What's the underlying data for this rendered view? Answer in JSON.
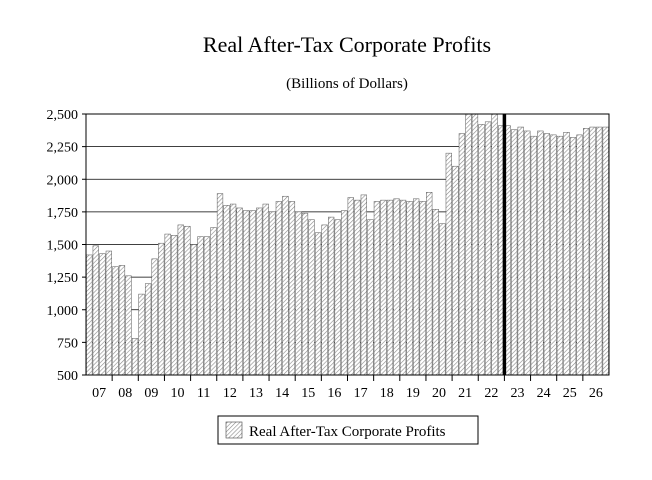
{
  "chart_data": {
    "type": "bar",
    "title": "Real After-Tax Corporate Profits",
    "subtitle": "(Billions of Dollars)",
    "xlabel": "",
    "ylabel": "",
    "ylim": [
      500,
      2500
    ],
    "yticks": [
      500,
      750,
      1000,
      1250,
      1500,
      1750,
      2000,
      2250,
      2500
    ],
    "ytick_labels": [
      "500",
      "750",
      "1,000",
      "1,250",
      "1,500",
      "1,750",
      "2,000",
      "2,250",
      "2,500"
    ],
    "xtick_labels": [
      "07",
      "08",
      "09",
      "10",
      "11",
      "12",
      "13",
      "14",
      "15",
      "16",
      "17",
      "18",
      "19",
      "20",
      "21",
      "22",
      "23",
      "24",
      "25",
      "26"
    ],
    "grid": "horizontal",
    "forecast_marker_after_quarter": "2022Q4",
    "legend": {
      "position": "bottom",
      "entries": [
        "Real After-Tax Corporate Profits"
      ]
    },
    "series": [
      {
        "name": "Real After-Tax Corporate Profits",
        "x": [
          "2007Q1",
          "2007Q2",
          "2007Q3",
          "2007Q4",
          "2008Q1",
          "2008Q2",
          "2008Q3",
          "2008Q4",
          "2009Q1",
          "2009Q2",
          "2009Q3",
          "2009Q4",
          "2010Q1",
          "2010Q2",
          "2010Q3",
          "2010Q4",
          "2011Q1",
          "2011Q2",
          "2011Q3",
          "2011Q4",
          "2012Q1",
          "2012Q2",
          "2012Q3",
          "2012Q4",
          "2013Q1",
          "2013Q2",
          "2013Q3",
          "2013Q4",
          "2014Q1",
          "2014Q2",
          "2014Q3",
          "2014Q4",
          "2015Q1",
          "2015Q2",
          "2015Q3",
          "2015Q4",
          "2016Q1",
          "2016Q2",
          "2016Q3",
          "2016Q4",
          "2017Q1",
          "2017Q2",
          "2017Q3",
          "2017Q4",
          "2018Q1",
          "2018Q2",
          "2018Q3",
          "2018Q4",
          "2019Q1",
          "2019Q2",
          "2019Q3",
          "2019Q4",
          "2020Q1",
          "2020Q2",
          "2020Q3",
          "2020Q4",
          "2021Q1",
          "2021Q2",
          "2021Q3",
          "2021Q4",
          "2022Q1",
          "2022Q2",
          "2022Q3",
          "2022Q4",
          "2023Q1",
          "2023Q2",
          "2023Q3",
          "2023Q4",
          "2024Q1",
          "2024Q2",
          "2024Q3",
          "2024Q4",
          "2025Q1",
          "2025Q2",
          "2025Q3",
          "2025Q4",
          "2026Q1",
          "2026Q2",
          "2026Q3",
          "2026Q4"
        ],
        "values": [
          1420,
          1490,
          1430,
          1450,
          1330,
          1340,
          1260,
          780,
          1120,
          1200,
          1390,
          1510,
          1580,
          1570,
          1650,
          1640,
          1500,
          1560,
          1560,
          1630,
          1890,
          1800,
          1810,
          1780,
          1760,
          1760,
          1780,
          1810,
          1750,
          1830,
          1870,
          1830,
          1750,
          1740,
          1690,
          1590,
          1650,
          1710,
          1690,
          1760,
          1860,
          1840,
          1880,
          1690,
          1830,
          1840,
          1840,
          1850,
          1840,
          1830,
          1850,
          1830,
          1900,
          1770,
          1660,
          2200,
          2100,
          2350,
          2510,
          2500,
          2420,
          2440,
          2520,
          2410,
          2410,
          2380,
          2400,
          2370,
          2330,
          2370,
          2350,
          2340,
          2330,
          2360,
          2320,
          2340,
          2390,
          2400,
          2400,
          2400
        ]
      }
    ]
  }
}
